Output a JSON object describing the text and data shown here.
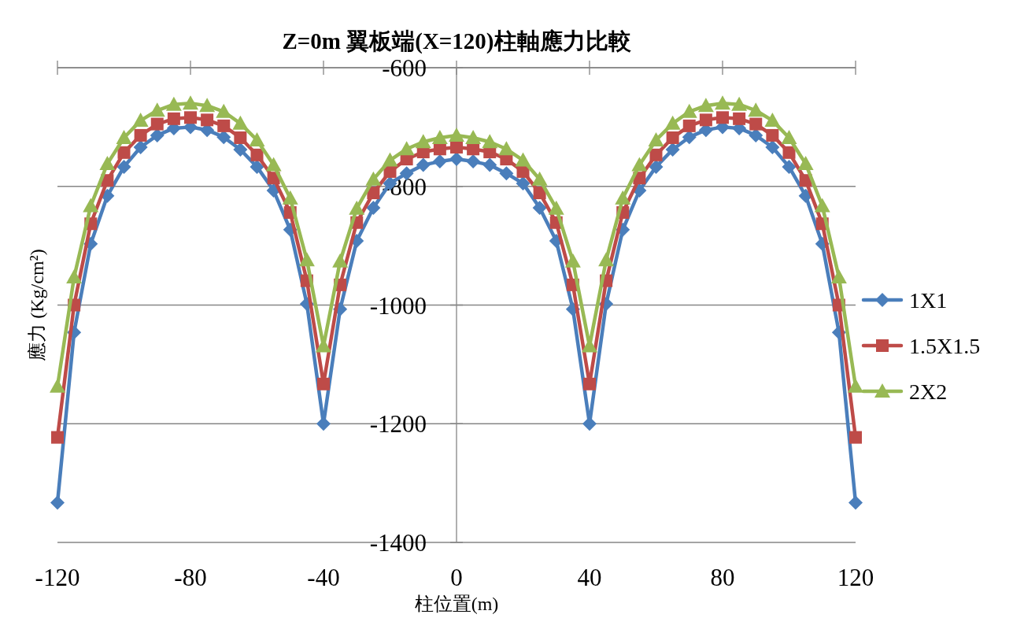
{
  "chart_data": {
    "type": "line",
    "title": "Z=0m 翼板端(X=120)柱軸應力比較",
    "xlabel": "柱位置(m)",
    "ylabel": "應力 (Kg/cm²)",
    "x": [
      -120,
      -115,
      -110,
      -105,
      -100,
      -95,
      -90,
      -85,
      -80,
      -75,
      -70,
      -65,
      -60,
      -55,
      -50,
      -45,
      -40,
      -35,
      -30,
      -25,
      -20,
      -15,
      -10,
      -5,
      0,
      5,
      10,
      15,
      20,
      25,
      30,
      35,
      40,
      45,
      50,
      55,
      60,
      65,
      70,
      75,
      80,
      85,
      90,
      95,
      100,
      105,
      110,
      115,
      120
    ],
    "series": [
      {
        "name": "1X1",
        "color": "#4a7ebb",
        "marker": "diamond",
        "values": [
          -1333,
          -1046,
          -897,
          -816,
          -767,
          -734,
          -714,
          -702,
          -700,
          -705,
          -717,
          -738,
          -767,
          -807,
          -873,
          -998,
          -1200,
          -1007,
          -892,
          -836,
          -795,
          -778,
          -764,
          -758,
          -754,
          -758,
          -764,
          -778,
          -795,
          -836,
          -892,
          -1007,
          -1200,
          -998,
          -873,
          -807,
          -767,
          -738,
          -717,
          -705,
          -700,
          -702,
          -714,
          -734,
          -767,
          -816,
          -897,
          -1046,
          -1333
        ]
      },
      {
        "name": "1.5X1.5",
        "color": "#be4b48",
        "marker": "square",
        "values": [
          -1223,
          -1000,
          -863,
          -790,
          -743,
          -714,
          -695,
          -686,
          -684,
          -688,
          -698,
          -718,
          -747,
          -786,
          -844,
          -959,
          -1133,
          -966,
          -861,
          -811,
          -775,
          -754,
          -742,
          -737,
          -734,
          -737,
          -742,
          -754,
          -775,
          -811,
          -861,
          -966,
          -1133,
          -959,
          -844,
          -786,
          -747,
          -718,
          -698,
          -688,
          -684,
          -686,
          -695,
          -714,
          -743,
          -790,
          -863,
          -1000,
          -1223
        ]
      },
      {
        "name": "2X2",
        "color": "#98b954",
        "marker": "triangle",
        "values": [
          -1137,
          -953,
          -833,
          -762,
          -718,
          -689,
          -672,
          -662,
          -660,
          -664,
          -674,
          -694,
          -722,
          -764,
          -820,
          -924,
          -1069,
          -926,
          -837,
          -788,
          -756,
          -737,
          -725,
          -718,
          -714,
          -718,
          -725,
          -737,
          -756,
          -788,
          -837,
          -926,
          -1069,
          -924,
          -820,
          -764,
          -722,
          -694,
          -674,
          -664,
          -660,
          -662,
          -672,
          -689,
          -718,
          -762,
          -833,
          -953,
          -1137
        ]
      }
    ],
    "xlim": [
      -120,
      120
    ],
    "xticks": [
      -120,
      -80,
      -40,
      0,
      40,
      80,
      120
    ],
    "ylim": [
      -1400,
      -600
    ],
    "yticks": [
      -600,
      -800,
      -1000,
      -1200,
      -1400
    ],
    "grid": "y",
    "legend": "right",
    "line_style": "solid"
  }
}
